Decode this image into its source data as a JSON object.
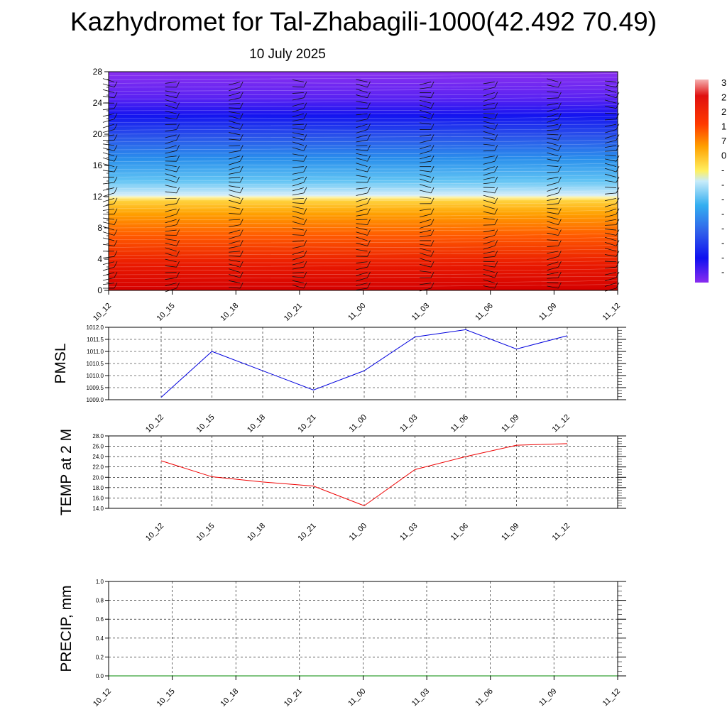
{
  "header": {
    "title": "Kazhydromet for Tal-Zhabagili-1000(42.492 70.49)",
    "date": "10 July 2025"
  },
  "chart_data": [
    {
      "type": "heatmap",
      "name": "temperature-wind-profile",
      "x_ticks": [
        "10_12",
        "10_15",
        "10_18",
        "10_21",
        "11_00",
        "11_03",
        "11_06",
        "11_09",
        "11_12"
      ],
      "y_ticks": [
        "0",
        "4",
        "8",
        "12",
        "16",
        "20",
        "24",
        "28"
      ],
      "ylim": [
        0,
        28
      ],
      "colorbar_labels": [
        "3",
        "2",
        "2",
        "1",
        "7",
        "0",
        "-",
        "-",
        "-",
        "-",
        "-",
        "-",
        "-",
        "-"
      ],
      "colors": {
        "warm_bottom": "#d40000",
        "warm_mid": "#ff6a00",
        "freezing_band": "#fff2a0",
        "cold_mid": "#29a8ef",
        "cold_top": "#1010f0",
        "top_violet": "#8a2cf0"
      }
    },
    {
      "type": "line",
      "name": "pmsl",
      "ylabel": "PMSL",
      "categories": [
        "10_12",
        "10_15",
        "10_18",
        "10_21",
        "11_00",
        "11_03",
        "11_06",
        "11_09",
        "11_12"
      ],
      "values": [
        1009.1,
        1011.0,
        1010.2,
        1009.4,
        1010.2,
        1011.6,
        1011.9,
        1011.1,
        1011.65
      ],
      "ylim": [
        1009.0,
        1012.0
      ],
      "y_ticks": [
        "1009.0",
        "1009.5",
        "1010.0",
        "1010.5",
        "1011.0",
        "1011.5",
        "1012.0"
      ],
      "line_color": "#0000dd",
      "grid": true
    },
    {
      "type": "line",
      "name": "temp-2m",
      "ylabel": "TEMP at 2 M",
      "categories": [
        "10_12",
        "10_15",
        "10_18",
        "10_21",
        "11_00",
        "11_03",
        "11_06",
        "11_09",
        "11_12"
      ],
      "values": [
        23.2,
        20.1,
        19.1,
        18.3,
        14.5,
        21.5,
        24.0,
        26.2,
        26.5
      ],
      "ylim": [
        14.0,
        28.0
      ],
      "y_ticks": [
        "14.0",
        "16.0",
        "18.0",
        "20.0",
        "22.0",
        "24.0",
        "26.0",
        "28.0"
      ],
      "line_color": "#ee0000",
      "grid": true
    },
    {
      "type": "line",
      "name": "precip",
      "ylabel": "PRECIP, mm",
      "categories": [
        "10_12",
        "10_15",
        "10_18",
        "10_21",
        "11_00",
        "11_03",
        "11_06",
        "11_09",
        "11_12"
      ],
      "values": [
        0,
        0,
        0,
        0,
        0,
        0,
        0,
        0,
        0
      ],
      "ylim": [
        0.0,
        1.0
      ],
      "y_ticks": [
        "0.0",
        "0.2",
        "0.4",
        "0.6",
        "0.8",
        "1.0"
      ],
      "line_color": "#008800",
      "grid": true
    }
  ]
}
